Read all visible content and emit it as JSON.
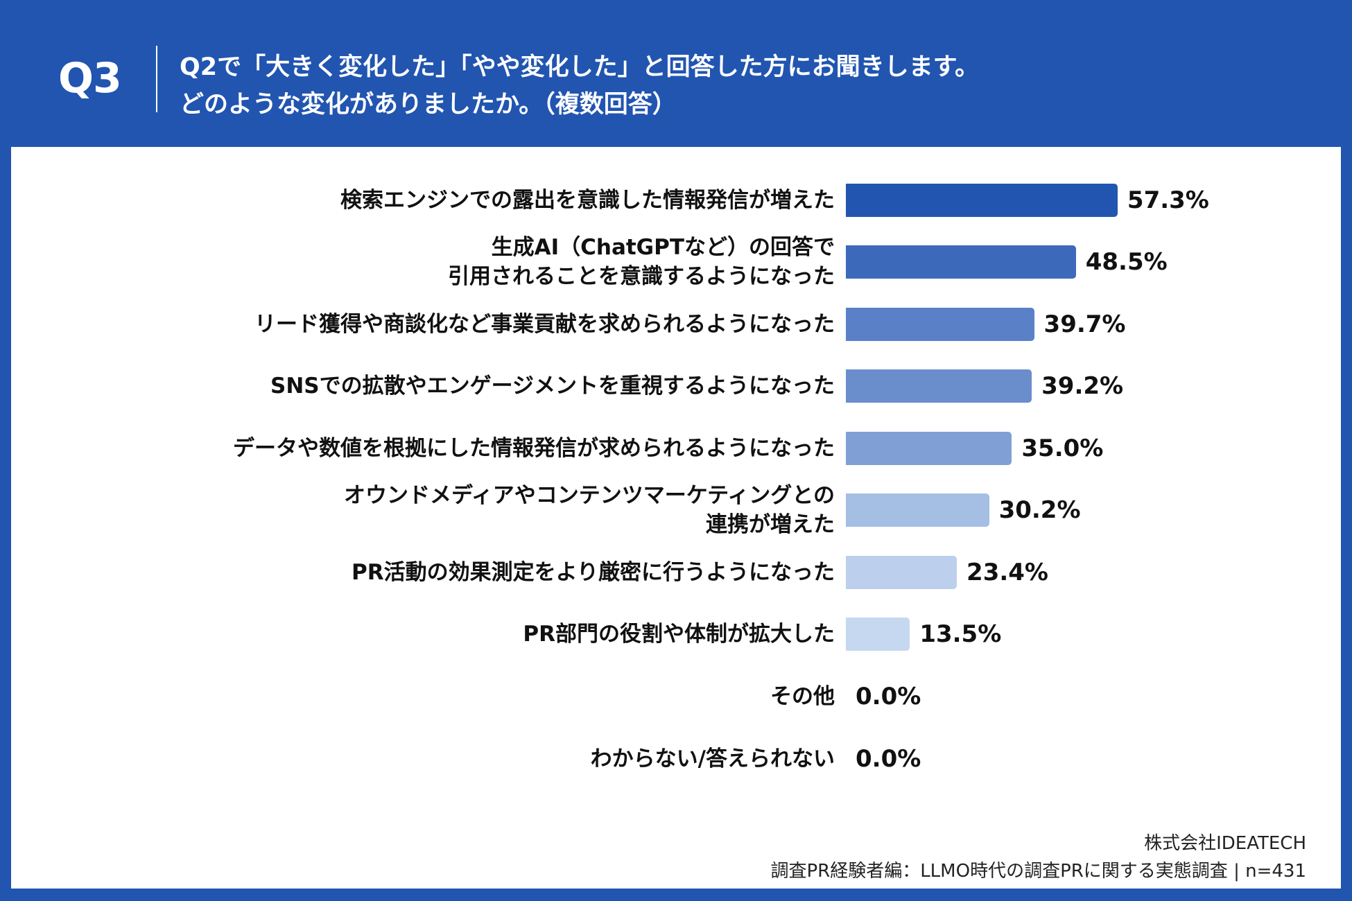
{
  "header": {
    "q_number": "Q3",
    "title_line1": "Q2で「大きく変化した」「やや変化した」と回答した方にお聞きします。",
    "title_line2": "どのような変化がありましたか。（複数回答）"
  },
  "chart_data": {
    "type": "bar",
    "orientation": "horizontal",
    "categories": [
      "検索エンジンでの露出を意識した情報発信が増えた",
      "生成AI（ChatGPTなど）の回答で\n引用されることを意識するようになった",
      "リード獲得や商談化など事業貢献を求められるようになった",
      "SNSでの拡散やエンゲージメントを重視するようになった",
      "データや数値を根拠にした情報発信が求められるようになった",
      "オウンドメディアやコンテンツマーケティングとの\n連携が増えた",
      "PR活動の効果測定をより厳密に行うようになった",
      "PR部門の役割や体制が拡大した",
      "その他",
      "わからない/答えられない"
    ],
    "values": [
      57.3,
      48.5,
      39.7,
      39.2,
      35.0,
      30.2,
      23.4,
      13.5,
      0.0,
      0.0
    ],
    "value_labels": [
      "57.3%",
      "48.5%",
      "39.7%",
      "39.2%",
      "35.0%",
      "30.2%",
      "23.4%",
      "13.5%",
      "0.0%",
      "0.0%"
    ],
    "bar_colors": [
      "#2155b0",
      "#3d69ba",
      "#5a81c7",
      "#6a8dcc",
      "#80a0d5",
      "#a4bee4",
      "#bcd0ed",
      "#c6d8f0",
      "#c6d8f0",
      "#c6d8f0"
    ],
    "grid": false
  },
  "footer": {
    "company": "株式会社IDEATECH",
    "survey": "調査PR経験者編：LLMO時代の調査PRに関する実態調査 | n=431"
  }
}
